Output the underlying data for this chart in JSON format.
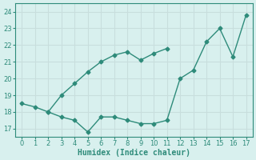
{
  "line1_x": [
    0,
    1,
    2,
    3,
    4,
    5,
    6,
    7,
    8,
    9,
    10,
    11,
    12,
    13,
    14,
    15,
    16,
    17
  ],
  "line1_y": [
    18.5,
    18.3,
    18.0,
    17.7,
    17.5,
    16.8,
    17.7,
    17.7,
    17.5,
    17.3,
    17.3,
    17.5,
    20.0,
    20.5,
    22.2,
    23.0,
    21.3,
    23.8
  ],
  "line2_x": [
    2,
    3,
    4,
    5,
    6,
    7,
    8,
    9,
    10,
    11
  ],
  "line2_y": [
    18.0,
    19.0,
    19.7,
    20.4,
    21.0,
    21.4,
    21.6,
    21.1,
    21.5,
    21.8
  ],
  "color": "#2e8b7a",
  "bg_color": "#d8f0ee",
  "grid_color": "#c8dedd",
  "xlabel": "Humidex (Indice chaleur)",
  "xlim": [
    -0.5,
    17.5
  ],
  "ylim": [
    16.5,
    24.5
  ],
  "xticks": [
    0,
    1,
    2,
    3,
    4,
    5,
    6,
    7,
    8,
    9,
    10,
    11,
    12,
    13,
    14,
    15,
    16,
    17
  ],
  "yticks": [
    17,
    18,
    19,
    20,
    21,
    22,
    23,
    24
  ]
}
